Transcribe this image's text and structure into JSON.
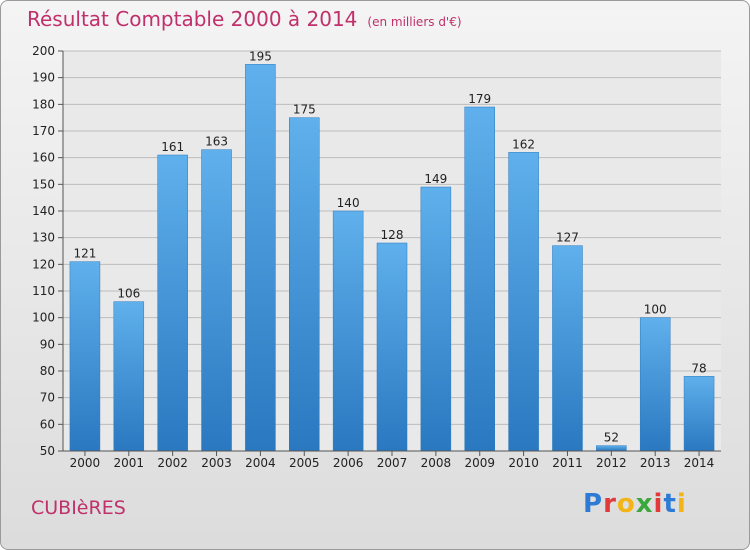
{
  "chart_data": {
    "type": "bar",
    "title": "Résultat Comptable 2000 à 2014",
    "subtitle": "(en milliers d'€)",
    "categories": [
      "2000",
      "2001",
      "2002",
      "2003",
      "2004",
      "2005",
      "2006",
      "2007",
      "2008",
      "2009",
      "2010",
      "2011",
      "2012",
      "2013",
      "2014"
    ],
    "values": [
      121,
      106,
      161,
      163,
      195,
      175,
      140,
      128,
      149,
      179,
      162,
      127,
      52,
      100,
      78
    ],
    "ylim": [
      50,
      200
    ],
    "yticks": [
      50,
      60,
      70,
      80,
      90,
      100,
      110,
      120,
      130,
      140,
      150,
      160,
      170,
      180,
      190,
      200
    ],
    "grid": true,
    "bar_color": "#4a9ee0"
  },
  "commune": "CUBIèRES",
  "logo": {
    "letters": [
      "P",
      "r",
      "o",
      "x",
      "i",
      "t",
      "i"
    ],
    "colors": [
      "#2e7bd6",
      "#e23a3a",
      "#f2b416",
      "#3aa83a",
      "#e23a3a",
      "#2e7bd6",
      "#f2b416"
    ]
  }
}
